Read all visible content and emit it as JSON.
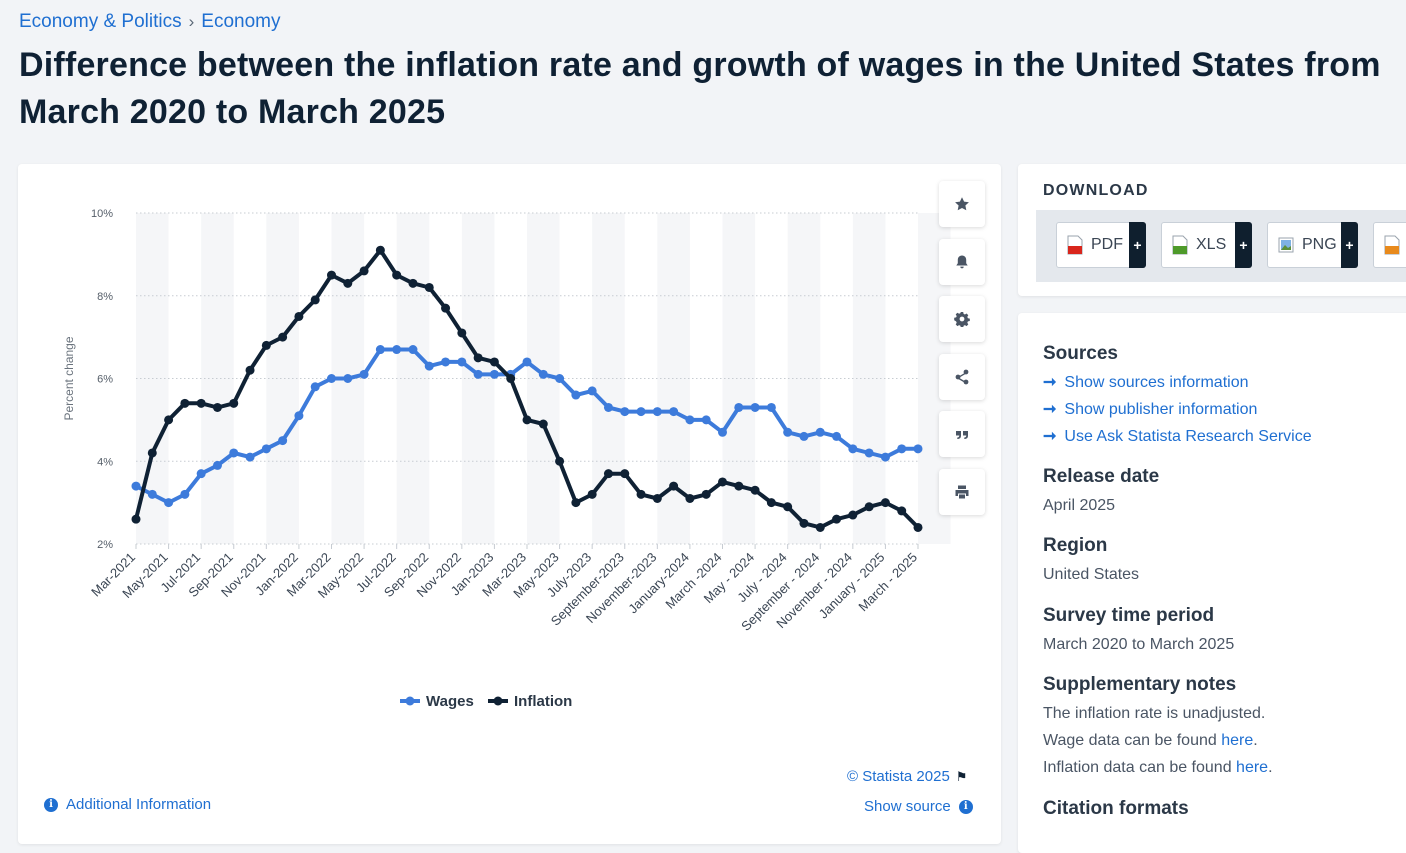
{
  "breadcrumb": {
    "parent": "Economy & Politics",
    "separator": "›",
    "current": "Economy"
  },
  "page_title": "Difference between the inflation rate and growth of wages in the United States from March 2020 to March 2025",
  "chart_data": {
    "type": "line",
    "title": "",
    "ylabel": "Percent change",
    "xlabel": "",
    "ylim": [
      2,
      10
    ],
    "yticks": [
      "2%",
      "4%",
      "6%",
      "8%",
      "10%"
    ],
    "grid": true,
    "legend_position": "bottom",
    "x_tick_labels": [
      "Mar-2021",
      "May-2021",
      "Jul-2021",
      "Sep-2021",
      "Nov-2021",
      "Jan-2022",
      "Mar-2022",
      "May-2022",
      "Jul-2022",
      "Sep-2022",
      "Nov-2022",
      "Jan-2023",
      "Mar-2023",
      "May-2023",
      "July-2023",
      "September-2023",
      "November-2023",
      "January-2024",
      "March -2024",
      "May - 2024",
      "July - 2024",
      "September - 2024",
      "November - 2024",
      "January - 2025",
      "March - 2025"
    ],
    "series": [
      {
        "name": "Wages",
        "color": "#3d7bdb",
        "values": [
          3.4,
          3.2,
          3.0,
          3.2,
          3.7,
          3.9,
          4.2,
          4.1,
          4.3,
          4.5,
          5.1,
          5.8,
          6.0,
          6.0,
          6.1,
          6.7,
          6.7,
          6.7,
          6.3,
          6.4,
          6.4,
          6.1,
          6.1,
          6.1,
          6.4,
          6.1,
          6.0,
          5.6,
          5.7,
          5.3,
          5.2,
          5.2,
          5.2,
          5.2,
          5.0,
          5.0,
          4.7,
          5.3,
          5.3,
          5.3,
          4.7,
          4.6,
          4.7,
          4.6,
          4.3,
          4.2,
          4.1,
          4.3,
          4.3
        ]
      },
      {
        "name": "Inflation",
        "color": "#0f2134",
        "values": [
          2.6,
          4.2,
          5.0,
          5.4,
          5.4,
          5.3,
          5.4,
          6.2,
          6.8,
          7.0,
          7.5,
          7.9,
          8.5,
          8.3,
          8.6,
          9.1,
          8.5,
          8.3,
          8.2,
          7.7,
          7.1,
          6.5,
          6.4,
          6.0,
          5.0,
          4.9,
          4.0,
          3.0,
          3.2,
          3.7,
          3.7,
          3.2,
          3.1,
          3.4,
          3.1,
          3.2,
          3.5,
          3.4,
          3.3,
          3.0,
          2.9,
          2.5,
          2.4,
          2.6,
          2.7,
          2.9,
          3.0,
          2.8,
          2.4
        ]
      }
    ]
  },
  "legend": {
    "wages": "Wages",
    "inflation": "Inflation"
  },
  "chart_footer": {
    "copyright": "© Statista 2025",
    "show_source": "Show source",
    "additional_info": "Additional Information"
  },
  "download": {
    "title": "DOWNLOAD",
    "buttons": [
      "PDF",
      "XLS",
      "PNG"
    ],
    "plus": "+"
  },
  "details": {
    "sources_heading": "Sources",
    "source_links": [
      "Show sources information",
      "Show publisher information",
      "Use Ask Statista Research Service"
    ],
    "release_heading": "Release date",
    "release_value": "April 2025",
    "region_heading": "Region",
    "region_value": "United States",
    "survey_heading": "Survey time period",
    "survey_value": "March 2020 to March 2025",
    "notes_heading": "Supplementary notes",
    "note1": "The inflation rate is unadjusted.",
    "note2_prefix": "Wage data can be found ",
    "note2_link": "here",
    "note2_suffix": ".",
    "note3_prefix": "Inflation data can be found ",
    "note3_link": "here",
    "note3_suffix": ".",
    "citation_heading": "Citation formats"
  },
  "icons": {
    "tools": [
      "star-icon",
      "bell-icon",
      "gear-icon",
      "share-icon",
      "quote-icon",
      "print-icon"
    ]
  }
}
